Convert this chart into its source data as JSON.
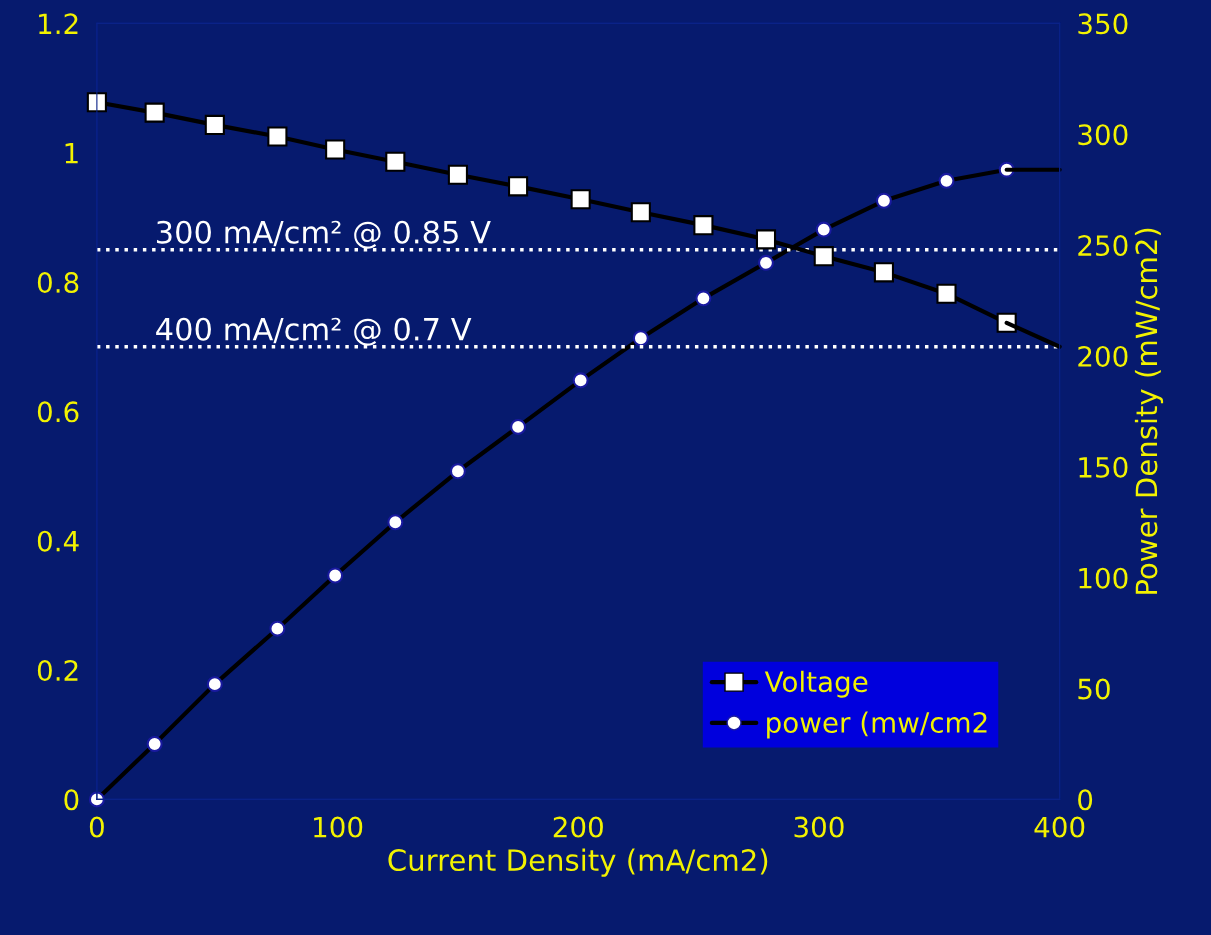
{
  "chart_data": {
    "type": "line",
    "xlabel": "Current Density (mA/cm2)",
    "y2label": "Power Density (mW/cm2)",
    "xlim": [
      0,
      400
    ],
    "xticks": [
      0,
      100,
      200,
      300,
      400
    ],
    "ylim": [
      0,
      1.2
    ],
    "yticks": [
      0,
      0.2,
      0.4,
      0.6,
      0.8,
      1,
      1.2
    ],
    "y2lim": [
      0,
      350
    ],
    "y2ticks": [
      0,
      50,
      100,
      150,
      200,
      250,
      300,
      350
    ],
    "grid": false,
    "legend": "bottom right",
    "line_style": "solid",
    "series": [
      {
        "name": "Voltage",
        "marker": "square",
        "color": "#000000",
        "x": [
          0,
          24,
          49,
          75,
          99,
          124,
          150,
          175,
          201,
          226,
          252,
          278,
          302,
          327,
          353,
          378
        ],
        "values": [
          1.078,
          1.062,
          1.043,
          1.025,
          1.005,
          0.986,
          0.966,
          0.948,
          0.928,
          0.908,
          0.888,
          0.866,
          0.84,
          0.815,
          0.782,
          0.737
        ]
      },
      {
        "name": "power (mw/cm2",
        "marker": "circle",
        "axis": "y2",
        "color": "#000000",
        "x": [
          0,
          24,
          49,
          75,
          99,
          124,
          150,
          175,
          201,
          226,
          252,
          278,
          302,
          327,
          353,
          378
        ],
        "values": [
          0,
          25,
          52,
          77,
          101,
          125,
          148,
          168,
          189,
          208,
          226,
          242,
          257,
          270,
          279,
          284
        ]
      },
      {
        "marker": "none",
        "color": "#000000",
        "x": [
          378,
          400
        ],
        "values": [
          0.737,
          0.7
        ]
      },
      {
        "marker": "none",
        "axis": "y2",
        "color": "#000000",
        "x": [
          378,
          400
        ],
        "values": [
          284,
          284
        ]
      }
    ],
    "ref_lines": [
      {
        "axis": "y",
        "value": 0.85,
        "label": "300 mA/cm² @ 0.85 V",
        "color": "#ffffff",
        "line_style": "dotted"
      },
      {
        "axis": "y",
        "value": 0.7,
        "label": "400 mA/cm² @ 0.7 V",
        "color": "#ffffff",
        "line_style": "dotted"
      }
    ]
  }
}
